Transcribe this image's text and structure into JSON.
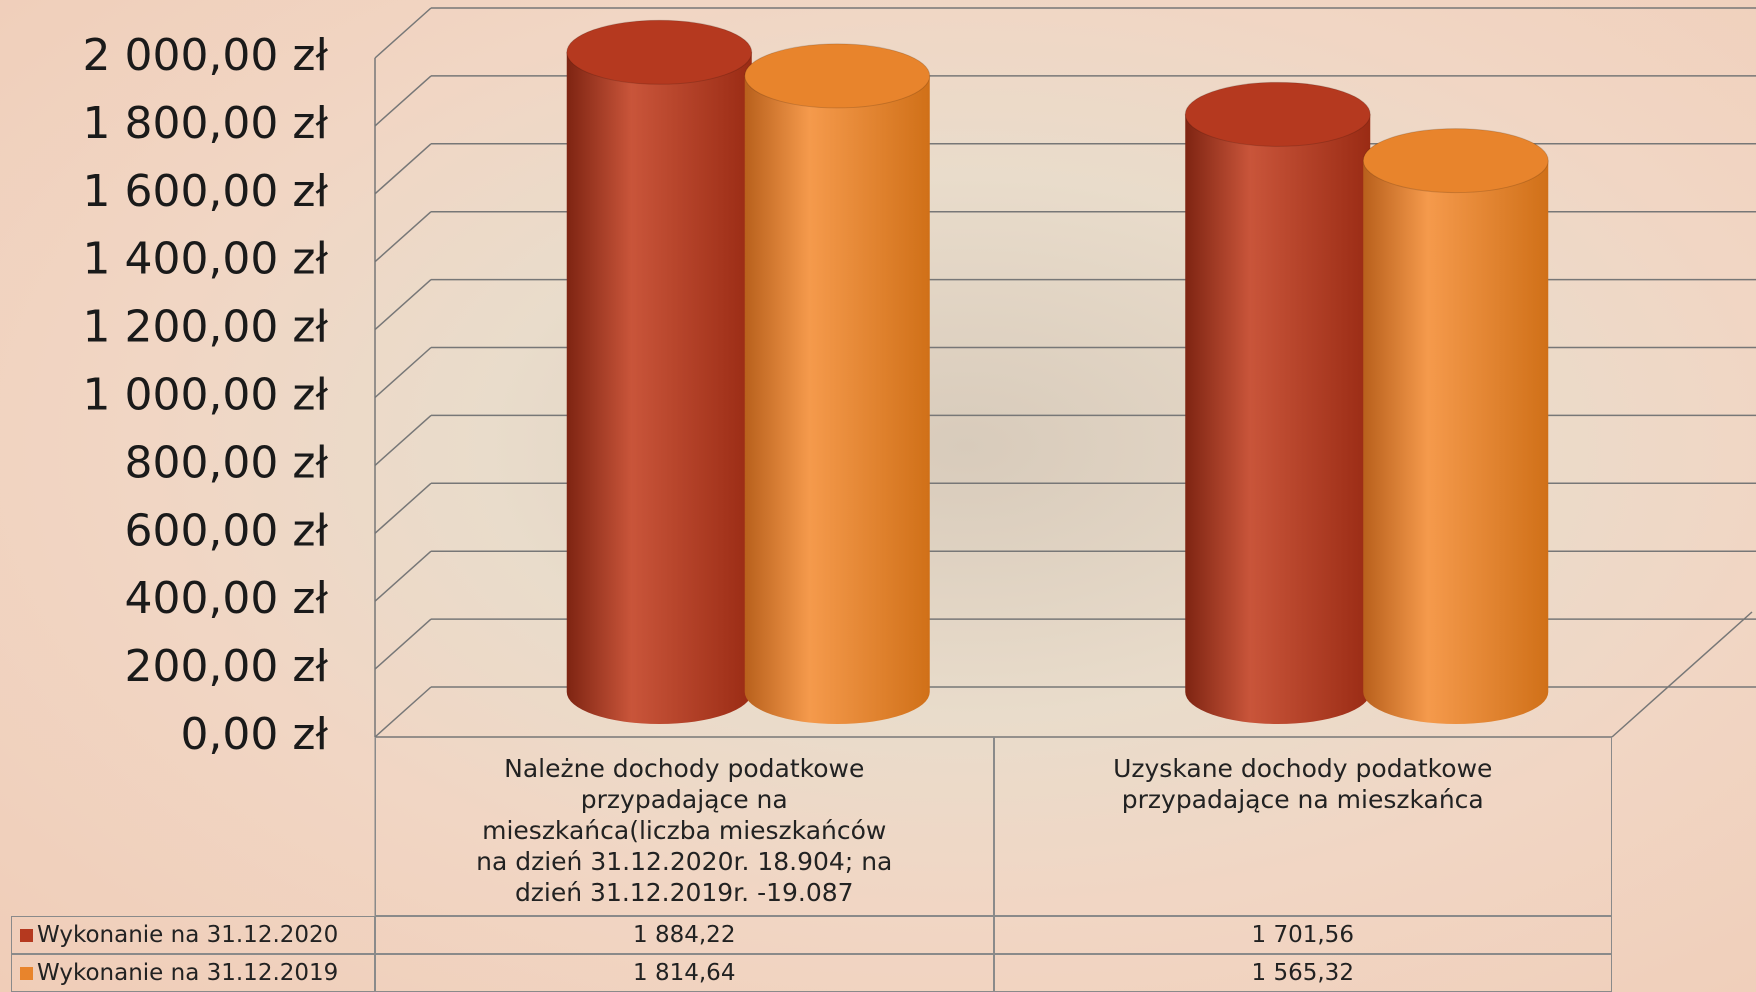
{
  "chart_data": {
    "type": "bar",
    "categories": [
      "Należne dochody podatkowe przypadające na mieszkańca(liczba mieszkańców na dzień 31.12.2020r. 18.904; na dzień 31.12.2019r. -19.087",
      "Uzyskane dochody podatkowe przypadające na mieszkańca"
    ],
    "series": [
      {
        "name": "Wykonanie na 31.12.2020",
        "color": "#b5391f",
        "values": [
          1884.22,
          1701.56
        ],
        "value_labels": [
          "1 884,22",
          "1 701,56"
        ]
      },
      {
        "name": "Wykonanie na 31.12.2019",
        "color": "#e8842c",
        "values": [
          1814.64,
          1565.32
        ],
        "value_labels": [
          "1 814,64",
          "1 565,32"
        ]
      }
    ],
    "ylim": [
      0,
      2000
    ],
    "yticks": [
      {
        "value": 0,
        "label": "0,00 zł"
      },
      {
        "value": 200,
        "label": "200,00 zł"
      },
      {
        "value": 400,
        "label": "400,00 zł"
      },
      {
        "value": 600,
        "label": "600,00 zł"
      },
      {
        "value": 800,
        "label": "800,00 zł"
      },
      {
        "value": 1000,
        "label": "1 000,00 zł"
      },
      {
        "value": 1200,
        "label": "1 200,00 zł"
      },
      {
        "value": 1400,
        "label": "1 400,00 zł"
      },
      {
        "value": 1600,
        "label": "1 600,00 zł"
      },
      {
        "value": 1800,
        "label": "1 800,00 zł"
      },
      {
        "value": 2000,
        "label": "2 000,00 zł"
      }
    ],
    "grid": true
  }
}
